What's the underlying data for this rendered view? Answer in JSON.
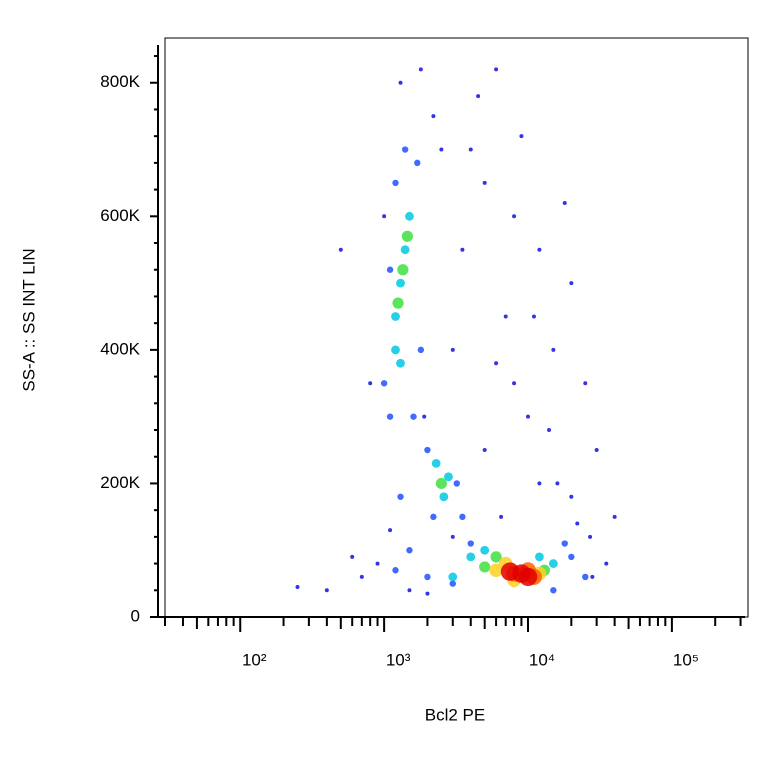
{
  "chart_data": {
    "type": "scatter",
    "x_label": "Bcl2 PE",
    "y_label": "SS-A :: SS INT LIN",
    "xscale": "log",
    "xlim": [
      30,
      338000
    ],
    "ylim": [
      0,
      867000
    ],
    "xticks": [
      {
        "value": 100,
        "label": "10²"
      },
      {
        "value": 1000,
        "label": "10³"
      },
      {
        "value": 10000,
        "label": "10⁴"
      },
      {
        "value": 100000,
        "label": "10⁵"
      }
    ],
    "yticks": [
      0,
      {
        "value": 200000,
        "label": "200K"
      },
      {
        "value": 400000,
        "label": "400K"
      },
      {
        "value": 600000,
        "label": "600K"
      },
      {
        "value": 800000,
        "label": "800K"
      }
    ],
    "series": [
      {
        "color": "#1010e0",
        "x": [
          4000,
          6000,
          5000,
          8000,
          12000,
          20000,
          7000,
          15000,
          25000,
          10000,
          6000,
          3500,
          18000,
          9000,
          4500,
          30000,
          12000,
          20000,
          40000,
          3000,
          900,
          700,
          600,
          250,
          400,
          1100,
          1900,
          2500,
          3000,
          14000,
          22000,
          35000,
          800,
          1000,
          1300,
          1800,
          2200,
          5000,
          8000,
          11000,
          16000,
          6500,
          27000,
          28000,
          1500,
          2000,
          500
        ],
        "values": [
          700000,
          820000,
          650000,
          600000,
          550000,
          500000,
          450000,
          400000,
          350000,
          300000,
          380000,
          550000,
          620000,
          720000,
          780000,
          250000,
          200000,
          180000,
          150000,
          120000,
          80000,
          60000,
          90000,
          45000,
          40000,
          130000,
          300000,
          700000,
          400000,
          280000,
          140000,
          80000,
          350000,
          600000,
          800000,
          820000,
          750000,
          250000,
          350000,
          450000,
          200000,
          150000,
          120000,
          60000,
          40000,
          35000,
          550000
        ]
      },
      {
        "color": "#2050ff",
        "x": [
          1000,
          1100,
          1200,
          1400,
          1700,
          1100,
          1800,
          1600,
          2000,
          2200,
          3200,
          3500,
          1500,
          1200,
          2000,
          3000,
          15000,
          20000,
          25000,
          18000,
          4000,
          1300
        ],
        "values": [
          350000,
          300000,
          650000,
          700000,
          680000,
          520000,
          400000,
          300000,
          250000,
          150000,
          200000,
          150000,
          100000,
          70000,
          60000,
          50000,
          40000,
          90000,
          60000,
          110000,
          110000,
          180000
        ]
      },
      {
        "color": "#00c8e0",
        "x": [
          1200,
          1300,
          1400,
          1500,
          1200,
          1300,
          2300,
          2600,
          2800,
          4000,
          5000,
          12000,
          15000,
          3000
        ],
        "values": [
          450000,
          500000,
          550000,
          600000,
          400000,
          380000,
          230000,
          180000,
          210000,
          90000,
          100000,
          90000,
          80000,
          60000
        ]
      },
      {
        "color": "#40e040",
        "x": [
          1250,
          1350,
          1450,
          2500,
          5000,
          13000,
          6000
        ],
        "values": [
          470000,
          520000,
          570000,
          200000,
          75000,
          70000,
          90000
        ]
      },
      {
        "color": "#ffd020",
        "x": [
          6000,
          7000,
          12000,
          8000
        ],
        "values": [
          70000,
          80000,
          65000,
          55000
        ]
      },
      {
        "color": "#ff6000",
        "x": [
          8000,
          10000,
          11000
        ],
        "values": [
          65000,
          70000,
          60000
        ]
      },
      {
        "color": "#e00000",
        "x": [
          9000,
          10000,
          7500
        ],
        "values": [
          65000,
          60000,
          68000
        ]
      }
    ]
  }
}
